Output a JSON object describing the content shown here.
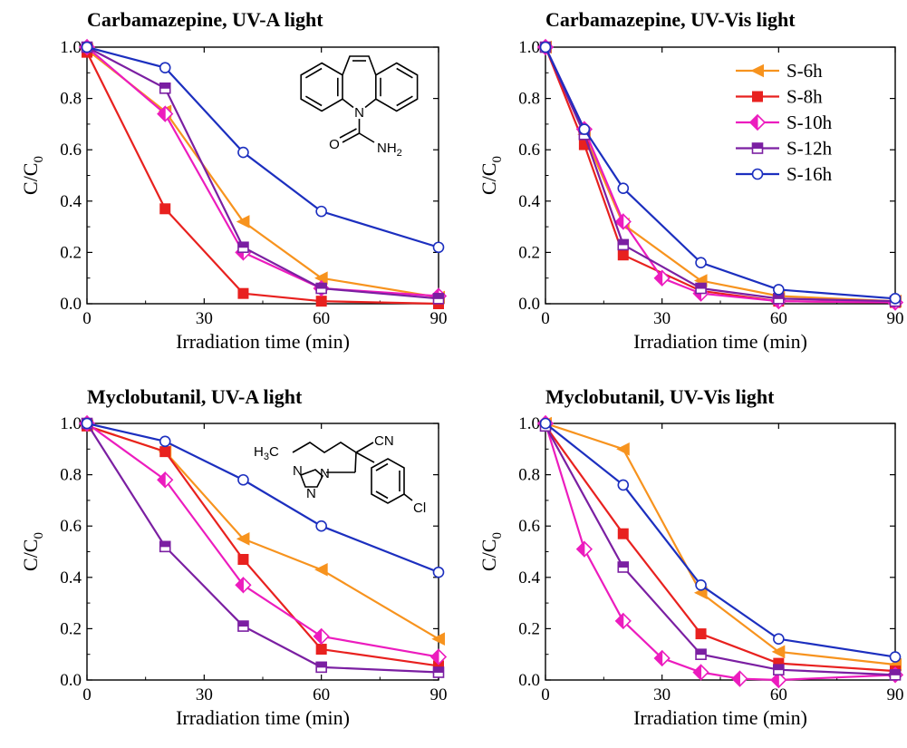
{
  "colors": {
    "S-6h": "#f7931e",
    "S-8h": "#e8211f",
    "S-10h": "#ec1cbe",
    "S-12h": "#7b1fa2",
    "S-16h": "#1c2fbf"
  },
  "legend": {
    "entries": [
      "S-6h",
      "S-8h",
      "S-10h",
      "S-12h",
      "S-16h"
    ]
  },
  "molecules": {
    "carbamazepine": {
      "n_label": "N",
      "o_label": "O",
      "nh2_label": "NH",
      "nh2_sub": "2"
    },
    "myclobutanil": {
      "h3c_label": "H",
      "h3c_sub": "3",
      "h3c_c": "C",
      "cn_label": "CN",
      "cl_label": "Cl",
      "triazole_n": "N",
      "triazole_n_bottom": "N",
      "triazole_n1": "N"
    }
  },
  "chart_data": [
    {
      "type": "line",
      "title": "Carbamazepine, UV-A light",
      "xlabel": "Irradiation time (min)",
      "ylabel_main": "C/C",
      "ylabel_sub": "0",
      "xlim": [
        0,
        90
      ],
      "ylim": [
        0,
        1.0
      ],
      "xticks": [
        "0",
        "30",
        "60",
        "90"
      ],
      "yticks": [
        "0.0",
        "0.2",
        "0.4",
        "0.6",
        "0.8",
        "1.0"
      ],
      "series": [
        {
          "name": "S-6h",
          "x": [
            0,
            20,
            40,
            60,
            90
          ],
          "y": [
            0.99,
            0.75,
            0.32,
            0.1,
            0.025
          ]
        },
        {
          "name": "S-8h",
          "x": [
            0,
            20,
            40,
            60,
            90
          ],
          "y": [
            0.98,
            0.37,
            0.04,
            0.01,
            0.0
          ]
        },
        {
          "name": "S-10h",
          "x": [
            0,
            20,
            40,
            60,
            90
          ],
          "y": [
            1.0,
            0.74,
            0.2,
            0.06,
            0.03
          ]
        },
        {
          "name": "S-12h",
          "x": [
            0,
            20,
            40,
            60,
            90
          ],
          "y": [
            1.0,
            0.84,
            0.22,
            0.06,
            0.02
          ]
        },
        {
          "name": "S-16h",
          "x": [
            0,
            20,
            40,
            60,
            90
          ],
          "y": [
            1.0,
            0.92,
            0.59,
            0.36,
            0.22
          ]
        }
      ]
    },
    {
      "type": "line",
      "title": "Carbamazepine, UV-Vis light",
      "xlabel": "Irradiation time (min)",
      "ylabel_main": "C/C",
      "ylabel_sub": "0",
      "xlim": [
        0,
        90
      ],
      "ylim": [
        0,
        1.0
      ],
      "xticks": [
        "0",
        "30",
        "60",
        "90"
      ],
      "yticks": [
        "0.0",
        "0.2",
        "0.4",
        "0.6",
        "0.8",
        "1.0"
      ],
      "series": [
        {
          "name": "S-6h",
          "x": [
            0,
            10,
            20,
            40,
            60,
            90
          ],
          "y": [
            1.0,
            0.66,
            0.31,
            0.09,
            0.03,
            0.01
          ]
        },
        {
          "name": "S-8h",
          "x": [
            0,
            10,
            20,
            40,
            60,
            90
          ],
          "y": [
            1.0,
            0.62,
            0.19,
            0.05,
            0.01,
            0.005
          ]
        },
        {
          "name": "S-10h",
          "x": [
            0,
            10,
            20,
            30,
            40,
            60,
            90
          ],
          "y": [
            1.0,
            0.68,
            0.32,
            0.1,
            0.04,
            0.01,
            0.005
          ]
        },
        {
          "name": "S-12h",
          "x": [
            0,
            10,
            20,
            40,
            60,
            90
          ],
          "y": [
            1.0,
            0.66,
            0.23,
            0.06,
            0.02,
            0.01
          ]
        },
        {
          "name": "S-16h",
          "x": [
            0,
            10,
            20,
            40,
            60,
            90
          ],
          "y": [
            1.0,
            0.68,
            0.45,
            0.16,
            0.055,
            0.02
          ]
        }
      ]
    },
    {
      "type": "line",
      "title": "Myclobutanil, UV-A light",
      "xlabel": "Irradiation time (min)",
      "ylabel_main": "C/C",
      "ylabel_sub": "0",
      "xlim": [
        0,
        90
      ],
      "ylim": [
        0,
        1.0
      ],
      "xticks": [
        "0",
        "30",
        "60",
        "90"
      ],
      "yticks": [
        "0.0",
        "0.2",
        "0.4",
        "0.6",
        "0.8",
        "1.0"
      ],
      "series": [
        {
          "name": "S-6h",
          "x": [
            0,
            20,
            40,
            60,
            90
          ],
          "y": [
            0.99,
            0.89,
            0.55,
            0.43,
            0.16
          ]
        },
        {
          "name": "S-8h",
          "x": [
            0,
            20,
            40,
            60,
            90
          ],
          "y": [
            0.99,
            0.89,
            0.47,
            0.12,
            0.055
          ]
        },
        {
          "name": "S-10h",
          "x": [
            0,
            20,
            40,
            60,
            90
          ],
          "y": [
            1.0,
            0.78,
            0.37,
            0.17,
            0.09
          ]
        },
        {
          "name": "S-12h",
          "x": [
            0,
            20,
            40,
            60,
            90
          ],
          "y": [
            1.0,
            0.52,
            0.21,
            0.05,
            0.03
          ]
        },
        {
          "name": "S-16h",
          "x": [
            0,
            20,
            40,
            60,
            90
          ],
          "y": [
            1.0,
            0.93,
            0.78,
            0.6,
            0.42
          ]
        }
      ]
    },
    {
      "type": "line",
      "title": "Myclobutanil, UV-Vis light",
      "xlabel": "Irradiation time (min)",
      "ylabel_main": "C/C",
      "ylabel_sub": "0",
      "xlim": [
        0,
        90
      ],
      "ylim": [
        0,
        1.0
      ],
      "xticks": [
        "0",
        "30",
        "60",
        "90"
      ],
      "yticks": [
        "0.0",
        "0.2",
        "0.4",
        "0.6",
        "0.8",
        "1.0"
      ],
      "series": [
        {
          "name": "S-6h",
          "x": [
            0,
            20,
            40,
            60,
            90
          ],
          "y": [
            1.0,
            0.9,
            0.34,
            0.11,
            0.06
          ]
        },
        {
          "name": "S-8h",
          "x": [
            0,
            20,
            40,
            60,
            90
          ],
          "y": [
            0.99,
            0.57,
            0.18,
            0.065,
            0.035
          ]
        },
        {
          "name": "S-10h",
          "x": [
            0,
            10,
            20,
            30,
            40,
            50,
            60,
            90
          ],
          "y": [
            1.0,
            0.51,
            0.23,
            0.085,
            0.03,
            0.005,
            0.0,
            0.02
          ]
        },
        {
          "name": "S-12h",
          "x": [
            0,
            20,
            40,
            60,
            90
          ],
          "y": [
            0.99,
            0.44,
            0.1,
            0.04,
            0.02
          ]
        },
        {
          "name": "S-16h",
          "x": [
            0,
            20,
            40,
            60,
            90
          ],
          "y": [
            1.0,
            0.76,
            0.37,
            0.16,
            0.09
          ]
        }
      ]
    }
  ]
}
